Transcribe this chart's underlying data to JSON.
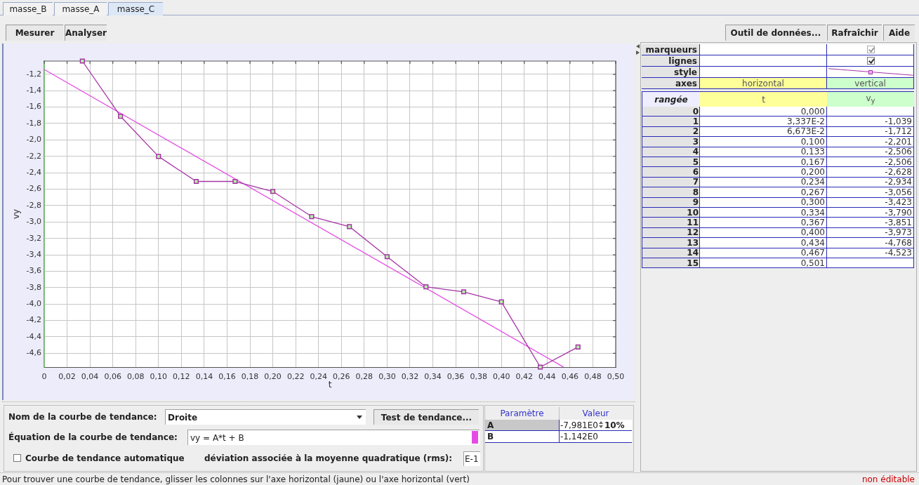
{
  "chart_data": [
    {
      "type": "line",
      "xlabel": "t",
      "ylabel": "vy",
      "x": [
        0.03337,
        0.06673,
        0.1,
        0.133,
        0.167,
        0.2,
        0.234,
        0.267,
        0.3,
        0.334,
        0.367,
        0.4,
        0.434,
        0.467
      ],
      "series": [
        {
          "color": "#a634a6",
          "values": [
            -1.039,
            -1.712,
            -2.201,
            -2.506,
            -2.506,
            -2.628,
            -2.934,
            -3.056,
            -3.423,
            -3.79,
            -3.851,
            -3.973,
            -4.768,
            -4.523
          ]
        },
        {
          "type": "line",
          "x": [
            0,
            0.454
          ],
          "values": [
            -1.142,
            -4.765
          ],
          "color": "#e44ce4",
          "marker": "none"
        }
      ],
      "xlim": [
        0,
        0.5
      ],
      "ylim": [
        -4.768,
        -1.039
      ],
      "xticks": [
        0,
        {
          "value": 0.02,
          "label": "0,02"
        },
        {
          "value": 0.04,
          "label": "0,04"
        },
        {
          "value": 0.06,
          "label": "0,06"
        },
        {
          "value": 0.08,
          "label": "0,08"
        },
        {
          "value": 0.1,
          "label": "0,10"
        },
        {
          "value": 0.12,
          "label": "0,12"
        },
        {
          "value": 0.14,
          "label": "0,14"
        },
        {
          "value": 0.16,
          "label": "0,16"
        },
        {
          "value": 0.18,
          "label": "0,18"
        },
        {
          "value": 0.2,
          "label": "0,20"
        },
        {
          "value": 0.22,
          "label": "0,22"
        },
        {
          "value": 0.24,
          "label": "0,24"
        },
        {
          "value": 0.26,
          "label": "0,26"
        },
        {
          "value": 0.28,
          "label": "0,28"
        },
        {
          "value": 0.3,
          "label": "0,30"
        },
        {
          "value": 0.32,
          "label": "0,32"
        },
        {
          "value": 0.34,
          "label": "0,34"
        },
        {
          "value": 0.36,
          "label": "0,36"
        },
        {
          "value": 0.38,
          "label": "0,38"
        },
        {
          "value": 0.4,
          "label": "0,40"
        },
        {
          "value": 0.42,
          "label": "0,42"
        },
        {
          "value": 0.44,
          "label": "0,44"
        },
        {
          "value": 0.46,
          "label": "0,46"
        },
        {
          "value": 0.48,
          "label": "0,48"
        },
        {
          "value": 0.5,
          "label": "0,50"
        }
      ],
      "yticks": [
        {
          "value": -1.2,
          "label": "-1,2"
        },
        {
          "value": -1.4,
          "label": "-1,4"
        },
        {
          "value": -1.6,
          "label": "-1,6"
        },
        {
          "value": -1.8,
          "label": "-1,8"
        },
        {
          "value": -2.0,
          "label": "-2,0"
        },
        {
          "value": -2.2,
          "label": "-2,2"
        },
        {
          "value": -2.4,
          "label": "-2,4"
        },
        {
          "value": -2.6,
          "label": "-2,6"
        },
        {
          "value": -2.8,
          "label": "-2,8"
        },
        {
          "value": -3.0,
          "label": "-3,0"
        },
        {
          "value": -3.2,
          "label": "-3,2"
        },
        {
          "value": -3.4,
          "label": "-3,4"
        },
        {
          "value": -3.6,
          "label": "-3,6"
        },
        {
          "value": -3.8,
          "label": "-3,8"
        },
        {
          "value": -4.0,
          "label": "-4,0"
        },
        {
          "value": -4.2,
          "label": "-4,2"
        },
        {
          "value": -4.4,
          "label": "-4,4"
        },
        {
          "value": -4.6,
          "label": "-4,6"
        }
      ],
      "grid": true,
      "legend": false,
      "marker": "square",
      "line_style": "solid"
    },
    {
      "type": "heatmap",
      "ylabel": "rangée",
      "categories": [
        "t",
        "v$_{y}$"
      ],
      "y_categories": [
        "0",
        "1",
        "2",
        "3",
        "4",
        "5",
        "6",
        "7",
        "8",
        "9",
        "10",
        "11",
        "12",
        "13",
        "14",
        "15"
      ],
      "cells": [
        [
          null,
          null
        ],
        [
          null,
          null
        ],
        [
          null,
          null
        ],
        [
          null,
          null
        ],
        [
          null,
          null
        ],
        [
          null,
          null
        ],
        [
          null,
          null
        ],
        [
          null,
          null
        ],
        [
          null,
          null
        ],
        [
          null,
          null
        ],
        [
          null,
          null
        ],
        [
          null,
          null
        ],
        [
          null,
          null
        ],
        [
          null,
          null
        ],
        [
          null,
          null
        ],
        [
          null,
          null
        ]
      ],
      "cell_labels": [
        [
          "0,000",
          null
        ],
        [
          "3,337E-2",
          "-1,039"
        ],
        [
          "6,673E-2",
          "-1,712"
        ],
        [
          "0,100",
          "-2,201"
        ],
        [
          "0,133",
          "-2,506"
        ],
        [
          "0,167",
          "-2,506"
        ],
        [
          "0,200",
          "-2,628"
        ],
        [
          "0,234",
          "-2,934"
        ],
        [
          "0,267",
          "-3,056"
        ],
        [
          "0,300",
          "-3,423"
        ],
        [
          "0,334",
          "-3,790"
        ],
        [
          "0,367",
          "-3,851"
        ],
        [
          "0,400",
          "-3,973"
        ],
        [
          "0,434",
          "-4,768"
        ],
        [
          "0,467",
          "-4,523"
        ],
        [
          "0,501",
          null
        ]
      ]
    },
    {
      "type": "other",
      "annotations": [
        "masse_B",
        "masse_A",
        "masse_C",
        "Mesurer",
        "Analyser",
        "Outil de données...",
        "Rafraîchir",
        "Aide",
        "marqueurs",
        "lignes",
        "style",
        "axes",
        "horizontal",
        "vertical",
        "Nom de la courbe de tendance:",
        "Droite",
        "Test de tendance...",
        "Équation de la courbe de tendance:",
        "vy = A*t + B",
        "Courbe de tendance automatique",
        "déviation associée à la moyenne quadratique (rms):",
        "E-1",
        "Paramètre",
        "Valeur",
        "A",
        "-7,981E0",
        "10%",
        "B",
        "-1,142E0",
        "Pour trouver une courbe de tendance, glisser les colonnes sur l'axe horizontal (jaune) ou l'axe horizontal (vert)",
        "non éditable"
      ]
    }
  ]
}
